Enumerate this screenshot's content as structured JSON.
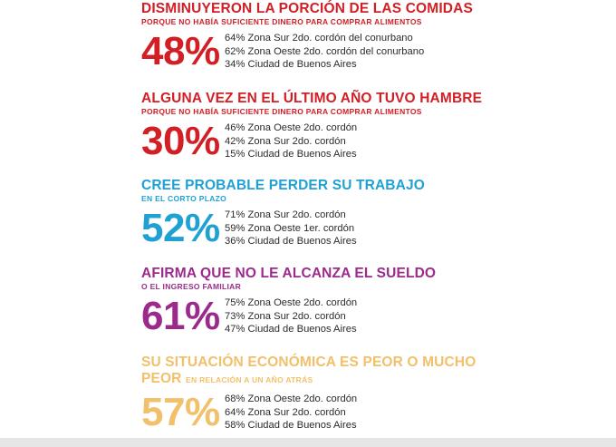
{
  "colors": {
    "red": "#d21e25",
    "blue": "#1fa1d4",
    "purple": "#9c2a8c",
    "gold": "#f2c06b",
    "detail_text": "#2b2b2b"
  },
  "stats": [
    {
      "headline": "DISMINUYERON LA PORCIÓN DE LAS COMIDAS",
      "subline": "PORQUE NO HABÍA SUFICIENTE DINERO PARA COMPRAR ALIMENTOS",
      "percent": "48%",
      "details": [
        "64% Zona Sur 2do. cordón del conurbano",
        "62% Zona Oeste 2do. cordón del conurbano",
        "34% Ciudad de Buenos Aires"
      ]
    },
    {
      "headline": "ALGUNA VEZ EN EL ÚLTIMO AÑO TUVO HAMBRE",
      "subline": "PORQUE NO HABÍA SUFICIENTE DINERO PARA COMPRAR ALIMENTOS",
      "percent": "30%",
      "details": [
        "46% Zona Oeste 2do. cordón",
        "42% Zona Sur 2do. cordón",
        "15% Ciudad de Buenos Aires"
      ]
    },
    {
      "headline": "CREE PROBABLE PERDER SU TRABAJO",
      "subline": "EN EL CORTO PLAZO",
      "percent": "52%",
      "details": [
        "71% Zona Sur 2do. cordón",
        "59% Zona Oeste 1er. cordón",
        "36% Ciudad de Buenos Aires"
      ]
    },
    {
      "headline": "AFIRMA QUE NO LE ALCANZA EL SUELDO",
      "subline": "O EL INGRESO FAMILIAR",
      "percent": "61%",
      "details": [
        "75% Zona Oeste 2do. cordón",
        "73% Zona Sur 2do. cordón",
        "47% Ciudad de Buenos Aires"
      ]
    },
    {
      "headline_line1": "SU SITUACIÓN ECONÓMICA ES PEOR O MUCHO",
      "headline_line2": "PEOR",
      "subline": "EN RELACIÓN A UN AÑO ATRÁS",
      "percent": "57%",
      "details": [
        "68% Zona Oeste 2do. cordón",
        "64% Zona Sur 2do. cordón",
        "58% Ciudad de Buenos Aires"
      ]
    }
  ]
}
